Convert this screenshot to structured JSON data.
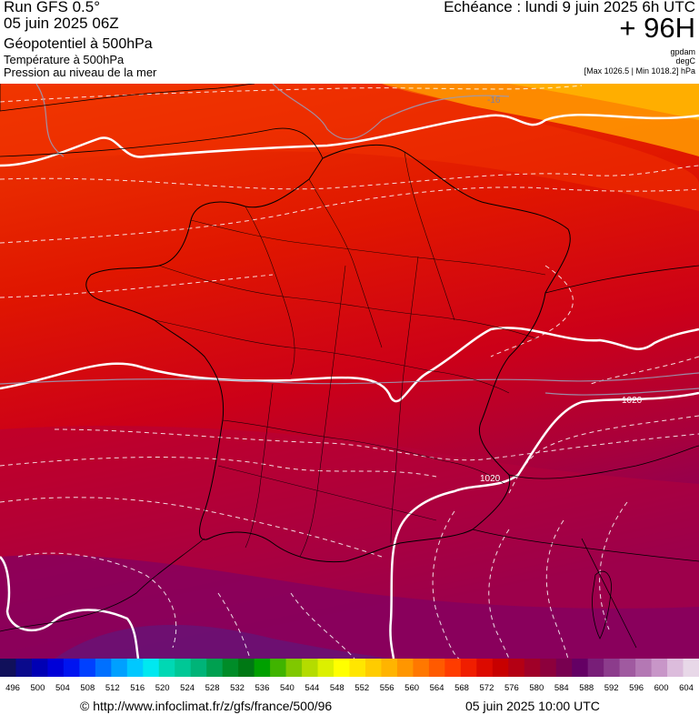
{
  "header": {
    "run_title": "Run GFS 0.5°",
    "run_date": "05 juin 2025 06Z",
    "title_geopotential": "Géopotentiel à 500hPa",
    "title_temperature": "Température à 500hPa",
    "title_pressure": "Pression au niveau de la mer",
    "echeance": "Echéance : lundi 9 juin 2025 6h UTC",
    "lead_time": "+ 96H",
    "unit_geopotential": "gpdam",
    "unit_temperature": "degC",
    "pressure_minmax": "[Max 1026.5 | Min 1018.2] hPa"
  },
  "map": {
    "isoline_labels": {
      "temp_label": "-16",
      "pressure_label_east": "1020",
      "pressure_label_south": "1020"
    }
  },
  "scale": {
    "labels": [
      "496",
      "500",
      "504",
      "508",
      "512",
      "516",
      "520",
      "524",
      "528",
      "532",
      "536",
      "540",
      "544",
      "548",
      "552",
      "556",
      "560",
      "564",
      "568",
      "572",
      "576",
      "580",
      "584",
      "588",
      "592",
      "596",
      "600",
      "604"
    ],
    "colors": [
      "#10105a",
      "#0a0a8c",
      "#0000b4",
      "#0000d8",
      "#0014f0",
      "#0040ff",
      "#0070ff",
      "#00a0ff",
      "#00c8ff",
      "#00e8f0",
      "#00d8b4",
      "#00c896",
      "#00b478",
      "#00a050",
      "#008c28",
      "#007814",
      "#00a000",
      "#40b400",
      "#80c800",
      "#b4dc00",
      "#dcf000",
      "#ffff00",
      "#ffe600",
      "#ffcc00",
      "#ffb400",
      "#ff9600",
      "#ff7800",
      "#ff5a00",
      "#ff3c00",
      "#f01e00",
      "#dc0a00",
      "#c80000",
      "#b40014",
      "#a00028",
      "#8c003c",
      "#780050",
      "#640064",
      "#781e78",
      "#8c3c8c",
      "#a05aa0",
      "#b478b4",
      "#c896c8",
      "#dcbcdc",
      "#e8d8e8"
    ]
  },
  "footer": {
    "copyright": "© http://www.infoclimat.fr/z/gfs/france/500/96",
    "run_time": "05 juin 2025 10:00 UTC"
  },
  "colors": {
    "band_orange": "#ff8c00",
    "band_red": "#e41c00",
    "band_deepred": "#c00030",
    "band_purple": "#800060",
    "isohypse": "#ffffff",
    "isotherm": "#8080a0"
  }
}
